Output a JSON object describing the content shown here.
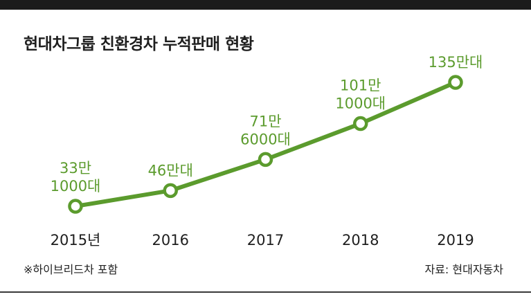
{
  "header": {
    "title": "현대차그룹 친환경차 누적판매 현황"
  },
  "footer": {
    "note": "※하이브리드차 포함",
    "source": "자료: 현대자동차"
  },
  "colors": {
    "series": "#5b9b2d",
    "text": "#222222",
    "top_bar": "#1b1b1b"
  },
  "chart_data": {
    "type": "line",
    "title": "현대차그룹 친환경차 누적판매 현황",
    "xlabel": "",
    "ylabel": "",
    "unit": "대",
    "categories": [
      "2015년",
      "2016",
      "2017",
      "2018",
      "2019"
    ],
    "values": [
      331000,
      460000,
      716000,
      1011000,
      1350000
    ],
    "data_labels": [
      [
        "33만",
        "1000대"
      ],
      [
        "46만대"
      ],
      [
        "71만",
        "6000대"
      ],
      [
        "101만",
        "1000대"
      ],
      [
        "135만대"
      ]
    ],
    "grid": false,
    "legend": "none",
    "marker": "hollow-circle"
  }
}
